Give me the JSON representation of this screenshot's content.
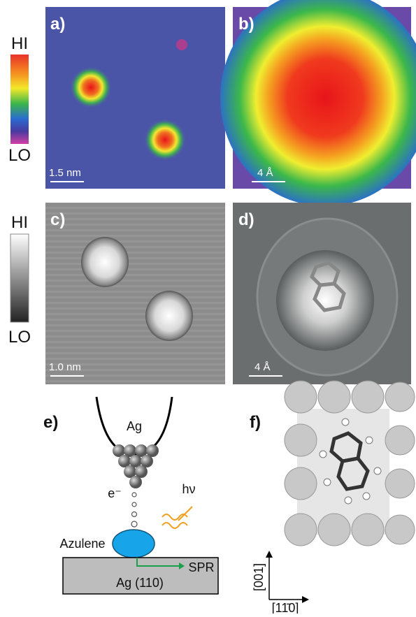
{
  "colorbars": [
    {
      "high": "HI",
      "low": "LO"
    },
    {
      "high": "HI",
      "low": "LO"
    }
  ],
  "panels": [
    {
      "label": "a)",
      "scale_bar": "1.5 nm"
    },
    {
      "label": "b)",
      "scale_bar": "4 Å"
    },
    {
      "label": "c)",
      "scale_bar": "1.0 nm"
    },
    {
      "label": "d)",
      "scale_bar": "4 Å"
    }
  ],
  "schematic": {
    "label": "e)",
    "tip": "Ag",
    "electron": "e⁻",
    "photon": "hν",
    "molecule": "Azulene",
    "plasmon": "SPR",
    "substrate": "Ag (110)"
  },
  "model": {
    "label": "f)",
    "axis_vertical": "[001]",
    "axis_horizontal": "[11̄0]"
  }
}
